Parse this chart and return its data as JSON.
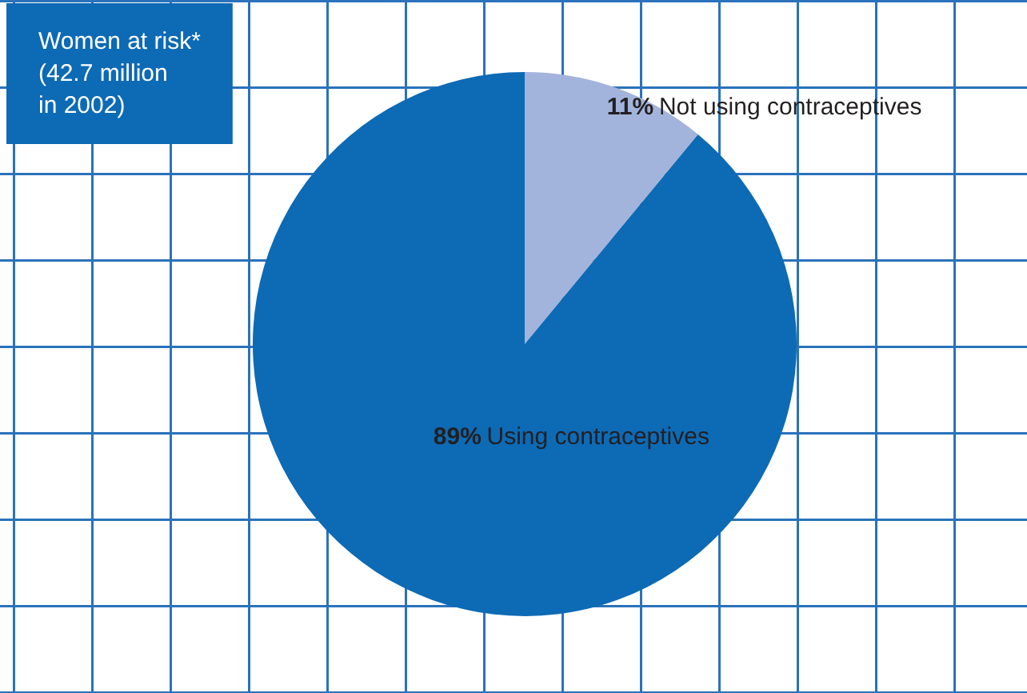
{
  "chart_data": {
    "type": "pie",
    "title": "Women at risk*\n(42.7 million\nin 2002)",
    "categories": [
      "Not using contraceptives",
      "Using contraceptives"
    ],
    "values": [
      11,
      89
    ],
    "value_labels": [
      "11%",
      "89%"
    ],
    "colors": [
      "#a3b4dc",
      "#0d6ab5"
    ]
  }
}
